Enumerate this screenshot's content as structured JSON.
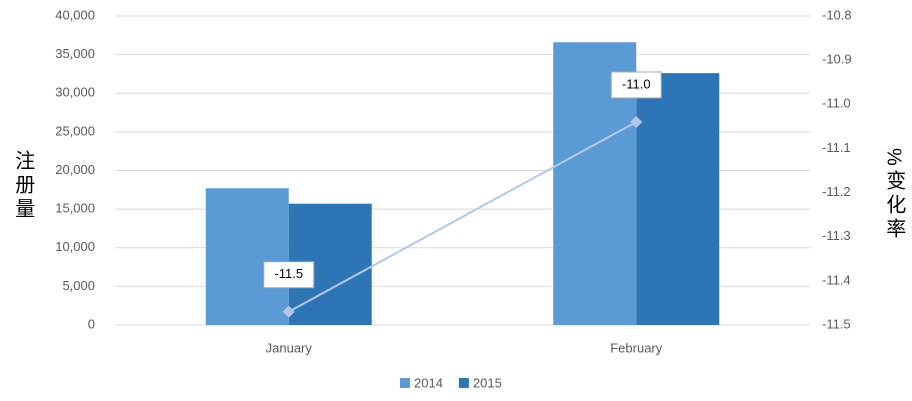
{
  "chart_data": {
    "type": "bar",
    "y_label": "注册量",
    "y2_label": "%变化率",
    "categories": [
      "January",
      "February"
    ],
    "series": [
      {
        "name": "2014",
        "color": "#5b9bd5",
        "values": [
          17700,
          36600
        ]
      },
      {
        "name": "2015",
        "color": "#2e75b6",
        "values": [
          15700,
          32600
        ]
      },
      {
        "type": "line",
        "axis": "y2",
        "color": "#b4c7e7",
        "values": [
          -11.47,
          -11.04
        ],
        "value_labels": [
          "-11.5",
          "-11.0"
        ]
      }
    ],
    "ylim": [
      0,
      40000
    ],
    "yticks": [
      0,
      {
        "value": 5000,
        "label": "5,000"
      },
      {
        "value": 10000,
        "label": "10,000"
      },
      {
        "value": 15000,
        "label": "15,000"
      },
      {
        "value": 20000,
        "label": "20,000"
      },
      {
        "value": 25000,
        "label": "25,000"
      },
      {
        "value": 30000,
        "label": "30,000"
      },
      {
        "value": 35000,
        "label": "35,000"
      },
      {
        "value": 40000,
        "label": "40,000"
      }
    ],
    "y2lim": [
      -11.5,
      -10.8
    ],
    "y2ticks": [
      -11.5,
      -11.4,
      -11.3,
      -11.2,
      -11.1,
      {
        "value": -11,
        "label": "-11.0"
      },
      -10.9,
      -10.8
    ],
    "grid": true,
    "legend": "bottom"
  }
}
